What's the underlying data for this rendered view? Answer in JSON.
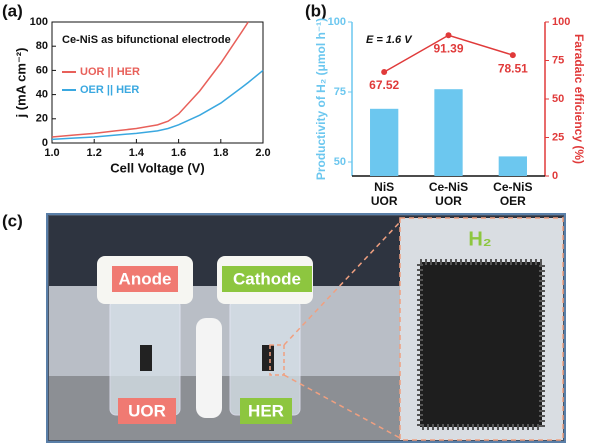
{
  "chart_data": [
    {
      "type": "line",
      "panel_label": "(a)",
      "annotation": "Ce-NiS as bifunctional electrode",
      "x_label": "Cell Voltage (V)",
      "y_label": "j (mA cm⁻²)",
      "x": [
        1.0,
        1.1,
        1.2,
        1.3,
        1.4,
        1.5,
        1.55,
        1.6,
        1.7,
        1.8,
        1.9,
        1.93,
        2.0
      ],
      "series": [
        {
          "name": "UOR || HER",
          "color": "#e8605a",
          "values": [
            5,
            6.5,
            8,
            10,
            12,
            15,
            18,
            24,
            43,
            66,
            92,
            100,
            null
          ]
        },
        {
          "name": "OER || HER",
          "color": "#3aa8e0",
          "values": [
            3,
            4,
            5,
            6.5,
            8,
            10,
            12,
            15,
            23,
            33,
            46,
            50,
            60
          ]
        }
      ],
      "xlim": [
        1.0,
        2.0
      ],
      "xticks": [
        {
          "value": 1,
          "label": "1.0"
        },
        {
          "value": 1.2,
          "label": "1.2"
        },
        {
          "value": 1.4,
          "label": "1.4"
        },
        {
          "value": 1.6,
          "label": "1.6"
        },
        {
          "value": 1.8,
          "label": "1.8"
        },
        {
          "value": 2,
          "label": "2.0"
        }
      ],
      "ylim": [
        0,
        100
      ],
      "yticks": [
        0,
        20,
        40,
        60,
        80,
        100
      ]
    },
    {
      "type": "bar",
      "panel_label": "(b)",
      "annotation": "E = 1.6 V",
      "y_label": "Productivity of H₂ (μmol h⁻¹)",
      "y2_label": "Faradaic efficiency (%)",
      "categories": [
        [
          "NiS",
          "UOR"
        ],
        [
          "Ce-NiS",
          "UOR"
        ],
        [
          "Ce-NiS",
          "OER"
        ]
      ],
      "series": [
        {
          "color": "#6cc7ef",
          "values": [
            69,
            76,
            52
          ]
        },
        {
          "color": "#e03a3a",
          "axis": "y2",
          "values": [
            67.52,
            91.39,
            78.51
          ]
        }
      ],
      "ylim": [
        45,
        100
      ],
      "yticks": [
        50,
        75,
        100
      ],
      "y2lim": [
        0,
        100
      ],
      "y2ticks": [
        0,
        25,
        50,
        75,
        100
      ]
    }
  ],
  "photo": {
    "panel_label": "(c)",
    "anode": "Anode",
    "cathode": "Cathode",
    "left_cell": "UOR",
    "right_cell": "HER",
    "inset": "H₂"
  }
}
